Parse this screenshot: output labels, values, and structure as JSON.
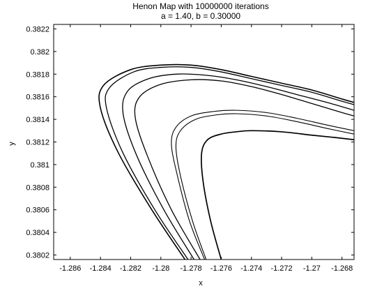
{
  "chart_data": {
    "type": "line",
    "title": "Henon Map with 10000000 iterations",
    "subtitle": "a = 1.40, b = 0.30000",
    "xlabel": "x",
    "ylabel": "y",
    "xlim": [
      -1.2871,
      -1.2672
    ],
    "ylim": [
      0.38016,
      0.38224
    ],
    "grid": false,
    "x_ticks": [
      -1.286,
      -1.284,
      -1.282,
      -1.28,
      -1.278,
      -1.276,
      -1.274,
      -1.272,
      -1.27,
      -1.268
    ],
    "x_tick_labels": [
      "-1.286",
      "-1.284",
      "-1.282",
      "-1.28",
      "-1.278",
      "-1.276",
      "-1.274",
      "-1.272",
      "-1.27",
      "-1.268"
    ],
    "y_ticks": [
      0.3802,
      0.3804,
      0.3806,
      0.3808,
      0.381,
      0.3812,
      0.3814,
      0.3816,
      0.3818,
      0.382,
      0.3822
    ],
    "y_tick_labels": [
      "0.3802",
      "0.3804",
      "0.3806",
      "0.3808",
      "0.381",
      "0.3812",
      "0.3814",
      "0.3816",
      "0.3818",
      "0.382",
      "0.3822"
    ],
    "series": [
      {
        "points": [
          [
            -1.2784,
            0.38016
          ],
          [
            -1.2806,
            0.3806
          ],
          [
            -1.2828,
            0.3811
          ],
          [
            -1.284,
            0.3815
          ],
          [
            -1.2838,
            0.3817
          ],
          [
            -1.282,
            0.38184
          ],
          [
            -1.28,
            0.38188
          ],
          [
            -1.278,
            0.38188
          ],
          [
            -1.276,
            0.38184
          ],
          [
            -1.274,
            0.38178
          ],
          [
            -1.272,
            0.38172
          ],
          [
            -1.27,
            0.38166
          ],
          [
            -1.268,
            0.38158
          ],
          [
            -1.2672,
            0.38155
          ]
        ]
      },
      {
        "points": [
          [
            -1.2782,
            0.38016
          ],
          [
            -1.2804,
            0.3806
          ],
          [
            -1.2825,
            0.3811
          ],
          [
            -1.2836,
            0.3815
          ],
          [
            -1.2834,
            0.38168
          ],
          [
            -1.2818,
            0.38182
          ],
          [
            -1.28,
            0.38186
          ],
          [
            -1.278,
            0.38186
          ],
          [
            -1.276,
            0.38182
          ],
          [
            -1.274,
            0.38176
          ],
          [
            -1.272,
            0.3817
          ],
          [
            -1.27,
            0.38164
          ],
          [
            -1.268,
            0.38156
          ],
          [
            -1.2672,
            0.38153
          ]
        ]
      },
      {
        "points": [
          [
            -1.2778,
            0.38016
          ],
          [
            -1.2798,
            0.3806
          ],
          [
            -1.2816,
            0.38108
          ],
          [
            -1.2825,
            0.38145
          ],
          [
            -1.2822,
            0.38165
          ],
          [
            -1.2808,
            0.38176
          ],
          [
            -1.279,
            0.3818
          ],
          [
            -1.277,
            0.38179
          ],
          [
            -1.275,
            0.38175
          ],
          [
            -1.273,
            0.38169
          ],
          [
            -1.271,
            0.38162
          ],
          [
            -1.269,
            0.38155
          ],
          [
            -1.2672,
            0.38148
          ]
        ]
      },
      {
        "points": [
          [
            -1.2774,
            0.38016
          ],
          [
            -1.2793,
            0.3806
          ],
          [
            -1.2809,
            0.38108
          ],
          [
            -1.2817,
            0.38142
          ],
          [
            -1.2814,
            0.3816
          ],
          [
            -1.28,
            0.38171
          ],
          [
            -1.278,
            0.38175
          ],
          [
            -1.276,
            0.38174
          ],
          [
            -1.274,
            0.38169
          ],
          [
            -1.272,
            0.38162
          ],
          [
            -1.27,
            0.38154
          ],
          [
            -1.268,
            0.38146
          ],
          [
            -1.2672,
            0.38143
          ]
        ]
      },
      {
        "points": [
          [
            -1.2771,
            0.38016
          ],
          [
            -1.2781,
            0.3805
          ],
          [
            -1.2789,
            0.3809
          ],
          [
            -1.2793,
            0.38118
          ],
          [
            -1.279,
            0.38133
          ],
          [
            -1.278,
            0.38143
          ],
          [
            -1.2765,
            0.38147
          ],
          [
            -1.275,
            0.38148
          ],
          [
            -1.273,
            0.38146
          ],
          [
            -1.271,
            0.38141
          ],
          [
            -1.269,
            0.38135
          ],
          [
            -1.2672,
            0.3813
          ]
        ]
      },
      {
        "points": [
          [
            -1.277,
            0.38016
          ],
          [
            -1.2779,
            0.3805
          ],
          [
            -1.2787,
            0.3809
          ],
          [
            -1.279,
            0.38116
          ],
          [
            -1.2787,
            0.3813
          ],
          [
            -1.2777,
            0.3814
          ],
          [
            -1.2763,
            0.38144
          ],
          [
            -1.275,
            0.38145
          ],
          [
            -1.273,
            0.38143
          ],
          [
            -1.271,
            0.38138
          ],
          [
            -1.269,
            0.38132
          ],
          [
            -1.2672,
            0.38127
          ]
        ]
      },
      {
        "points": [
          [
            -1.276,
            0.38016
          ],
          [
            -1.2767,
            0.3805
          ],
          [
            -1.2772,
            0.38085
          ],
          [
            -1.2773,
            0.3811
          ],
          [
            -1.2769,
            0.38122
          ],
          [
            -1.276,
            0.38127
          ],
          [
            -1.275,
            0.38129
          ],
          [
            -1.274,
            0.3813
          ],
          [
            -1.272,
            0.38129
          ],
          [
            -1.27,
            0.38126
          ],
          [
            -1.2685,
            0.38124
          ],
          [
            -1.2672,
            0.38122
          ]
        ]
      }
    ]
  }
}
